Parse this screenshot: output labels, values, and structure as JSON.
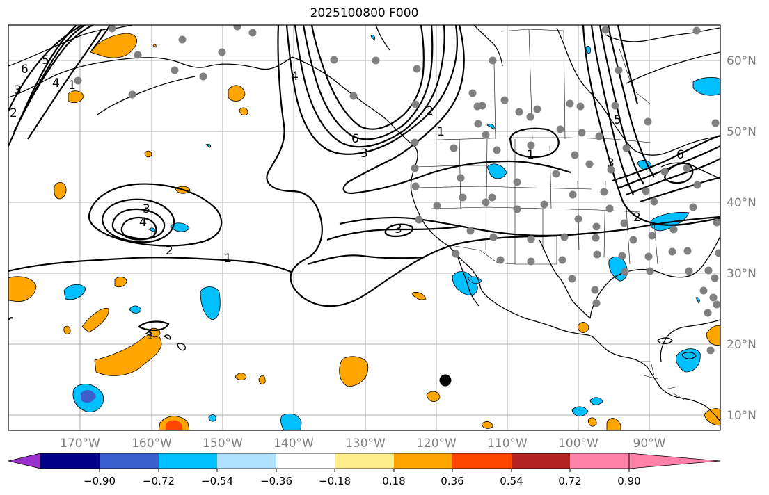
{
  "title": "2025100800 F000",
  "longitude_labels": [
    "170°W",
    "160°W",
    "150°W",
    "140°W",
    "130°W",
    "120°W",
    "110°W",
    "100°W",
    "90°W"
  ],
  "latitude_labels": [
    "60°N",
    "50°N",
    "40°N",
    "30°N",
    "20°N",
    "10°N"
  ],
  "colorbar": {
    "ticks": [
      "−0.90",
      "−0.72",
      "−0.54",
      "−0.36",
      "−0.18",
      "0.18",
      "0.36",
      "0.54",
      "0.72",
      "0.90"
    ],
    "colors": [
      "#9932cc",
      "#00008b",
      "#3a5fcd",
      "#00bfff",
      "#b0e2ff",
      "#ffffff",
      "#ffec8b",
      "#ffa500",
      "#ff4500",
      "#b22222",
      "#ff82ab"
    ]
  },
  "contour_labels": [
    "6",
    "5",
    "4",
    "3",
    "2",
    "1",
    "6",
    "3",
    "4",
    "2",
    "1",
    "3",
    "4",
    "2",
    "1",
    "3",
    "1",
    "5",
    "3",
    "2",
    "6",
    "1"
  ],
  "colors": {
    "land_outline": "#000000",
    "grid": "#808080",
    "station_dot": "#808080",
    "marker": "#000000"
  }
}
